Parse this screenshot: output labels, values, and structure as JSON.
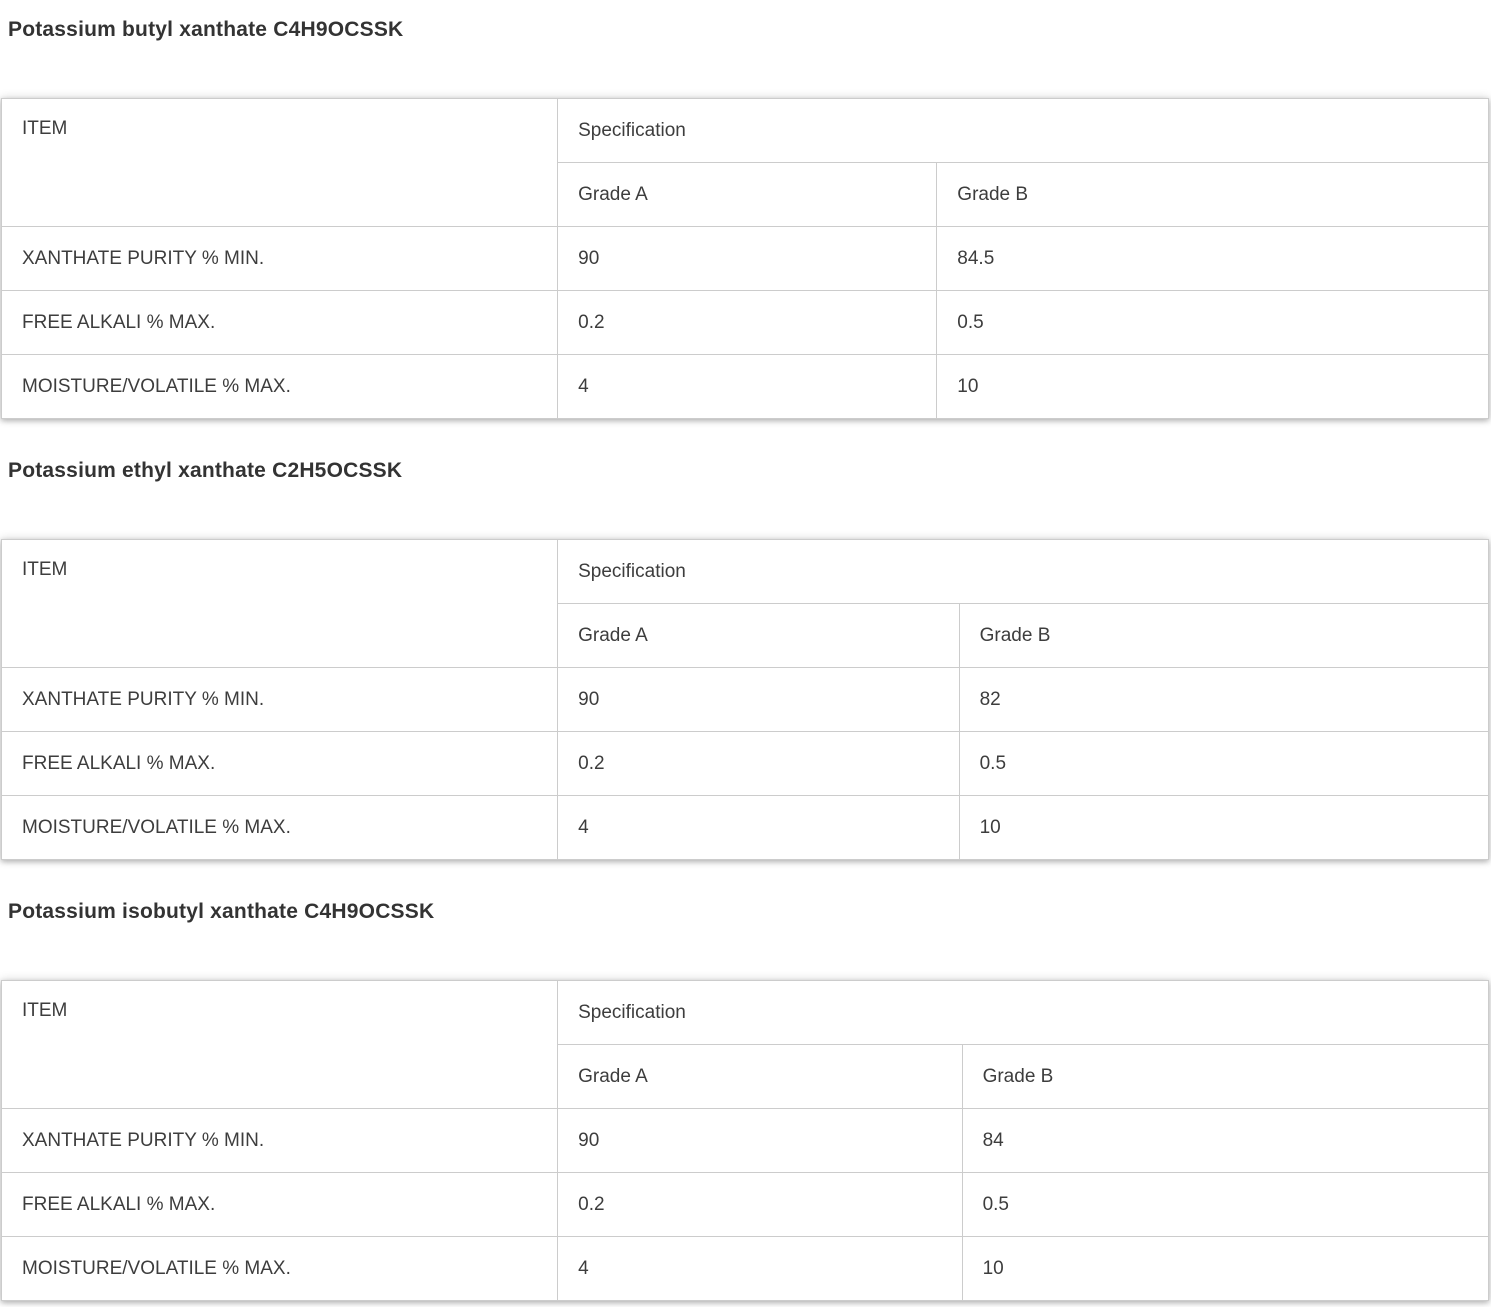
{
  "colors": {
    "background": "#ffffff",
    "table_border": "#cccccc",
    "body_text": "#3d3d3d",
    "title_text": "#333333"
  },
  "sections": [
    {
      "title": "Potassium butyl xanthate C4H9OCSSK",
      "table": {
        "headers": {
          "item": "ITEM",
          "specification": "Specification",
          "grade_a": "Grade A",
          "grade_b": "Grade B"
        },
        "rows": [
          {
            "item": "XANTHATE PURITY % MIN.",
            "grade_a": "90",
            "grade_b": "84.5"
          },
          {
            "item": "FREE ALKALI % MAX.",
            "grade_a": "0.2",
            "grade_b": "0.5"
          },
          {
            "item": "MOISTURE/VOLATILE % MAX.",
            "grade_a": "4",
            "grade_b": "10"
          }
        ]
      }
    },
    {
      "title": "Potassium ethyl xanthate C2H5OCSSK",
      "table": {
        "headers": {
          "item": "ITEM",
          "specification": "Specification",
          "grade_a": "Grade A",
          "grade_b": "Grade B"
        },
        "rows": [
          {
            "item": "XANTHATE PURITY % MIN.",
            "grade_a": "90",
            "grade_b": "82"
          },
          {
            "item": "FREE ALKALI % MAX.",
            "grade_a": "0.2",
            "grade_b": "0.5"
          },
          {
            "item": "MOISTURE/VOLATILE % MAX.",
            "grade_a": "4",
            "grade_b": "10"
          }
        ]
      }
    },
    {
      "title": "Potassium isobutyl xanthate C4H9OCSSK",
      "table": {
        "headers": {
          "item": "ITEM",
          "specification": "Specification",
          "grade_a": "Grade A",
          "grade_b": "Grade B"
        },
        "rows": [
          {
            "item": "XANTHATE PURITY % MIN.",
            "grade_a": "90",
            "grade_b": "84"
          },
          {
            "item": "FREE ALKALI % MAX.",
            "grade_a": "0.2",
            "grade_b": "0.5"
          },
          {
            "item": "MOISTURE/VOLATILE % MAX.",
            "grade_a": "4",
            "grade_b": "10"
          }
        ]
      }
    }
  ]
}
